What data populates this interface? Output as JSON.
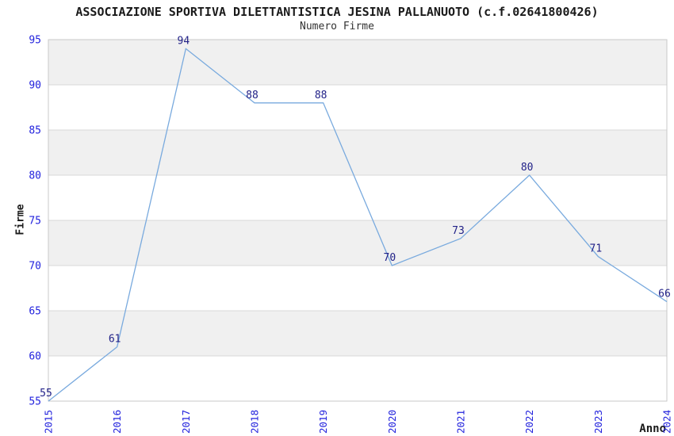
{
  "header": {
    "title": "ASSOCIAZIONE SPORTIVA DILETTANTISTICA JESINA PALLANUOTO (c.f.02641800426)",
    "subtitle": "Numero Firme"
  },
  "chart_data": {
    "type": "line",
    "title": "ASSOCIAZIONE SPORTIVA DILETTANTISTICA JESINA PALLANUOTO (c.f.02641800426)",
    "subtitle": "Numero Firme",
    "xlabel": "Anno",
    "ylabel": "Firme",
    "categories": [
      "2015",
      "2016",
      "2017",
      "2018",
      "2019",
      "2020",
      "2021",
      "2022",
      "2023",
      "2024"
    ],
    "values": [
      55,
      61,
      94,
      88,
      88,
      70,
      73,
      80,
      71,
      66
    ],
    "ylim": [
      55,
      95
    ],
    "ytick_step": 5,
    "yticks": [
      55,
      60,
      65,
      70,
      75,
      80,
      85,
      90,
      95
    ],
    "grid": "horizontal-bands",
    "legend_position": "none",
    "colors": {
      "line": "#79aade",
      "tick": "#2222dd",
      "value": "#222288",
      "band": "#f0f0f0",
      "grid": "#d8d8d8",
      "frame": "#c9c9c9",
      "background": "#ffffff"
    }
  }
}
